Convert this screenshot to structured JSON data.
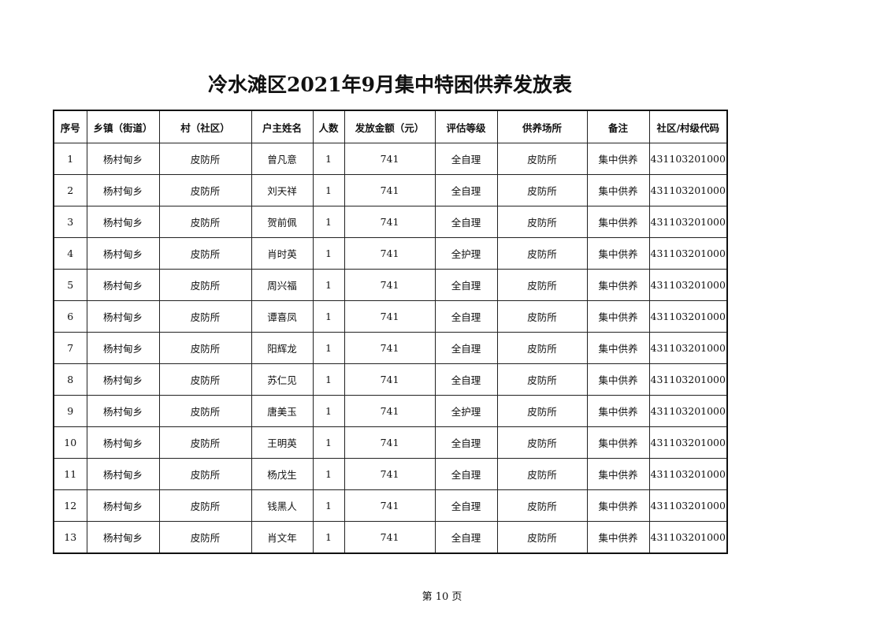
{
  "title": "冷水滩区2021年9月集中特困供养发放表",
  "columns": [
    "序号",
    "乡镇（街道）",
    "村（社区）",
    "户主姓名",
    "人数",
    "发放金额（元）",
    "评估等级",
    "供养场所",
    "备注",
    "社区/村级代码"
  ],
  "rows": [
    [
      "1",
      "杨村甸乡",
      "皮防所",
      "曾凡意",
      "1",
      "741",
      "全自理",
      "皮防所",
      "集中供养",
      "431103201000"
    ],
    [
      "2",
      "杨村甸乡",
      "皮防所",
      "刘天祥",
      "1",
      "741",
      "全自理",
      "皮防所",
      "集中供养",
      "431103201000"
    ],
    [
      "3",
      "杨村甸乡",
      "皮防所",
      "贺前佩",
      "1",
      "741",
      "全自理",
      "皮防所",
      "集中供养",
      "431103201000"
    ],
    [
      "4",
      "杨村甸乡",
      "皮防所",
      "肖时英",
      "1",
      "741",
      "全护理",
      "皮防所",
      "集中供养",
      "431103201000"
    ],
    [
      "5",
      "杨村甸乡",
      "皮防所",
      "周兴福",
      "1",
      "741",
      "全自理",
      "皮防所",
      "集中供养",
      "431103201000"
    ],
    [
      "6",
      "杨村甸乡",
      "皮防所",
      "谭喜凤",
      "1",
      "741",
      "全自理",
      "皮防所",
      "集中供养",
      "431103201000"
    ],
    [
      "7",
      "杨村甸乡",
      "皮防所",
      "阳辉龙",
      "1",
      "741",
      "全自理",
      "皮防所",
      "集中供养",
      "431103201000"
    ],
    [
      "8",
      "杨村甸乡",
      "皮防所",
      "苏仁见",
      "1",
      "741",
      "全自理",
      "皮防所",
      "集中供养",
      "431103201000"
    ],
    [
      "9",
      "杨村甸乡",
      "皮防所",
      "唐美玉",
      "1",
      "741",
      "全护理",
      "皮防所",
      "集中供养",
      "431103201000"
    ],
    [
      "10",
      "杨村甸乡",
      "皮防所",
      "王明英",
      "1",
      "741",
      "全自理",
      "皮防所",
      "集中供养",
      "431103201000"
    ],
    [
      "11",
      "杨村甸乡",
      "皮防所",
      "杨戊生",
      "1",
      "741",
      "全自理",
      "皮防所",
      "集中供养",
      "431103201000"
    ],
    [
      "12",
      "杨村甸乡",
      "皮防所",
      "钱黑人",
      "1",
      "741",
      "全自理",
      "皮防所",
      "集中供养",
      "431103201000"
    ],
    [
      "13",
      "杨村甸乡",
      "皮防所",
      "肖文年",
      "1",
      "741",
      "全自理",
      "皮防所",
      "集中供养",
      "431103201000"
    ]
  ],
  "footer": "第 10 页"
}
